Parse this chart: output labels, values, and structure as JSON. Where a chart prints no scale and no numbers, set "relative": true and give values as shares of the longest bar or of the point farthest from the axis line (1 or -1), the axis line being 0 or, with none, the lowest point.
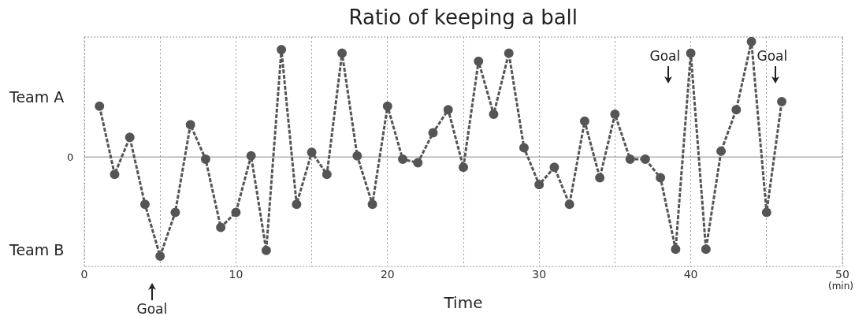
{
  "chart_data": {
    "type": "line",
    "title": "Ratio of keeping a ball",
    "xlabel": "Time",
    "relative": true,
    "x": [
      1,
      2,
      3,
      4,
      5,
      6,
      7,
      8,
      9,
      10,
      11,
      12,
      13,
      14,
      15,
      16,
      17,
      18,
      19,
      20,
      21,
      22,
      23,
      24,
      25,
      26,
      27,
      28,
      29,
      30,
      31,
      32,
      33,
      34,
      35,
      36,
      37,
      38,
      39,
      40,
      41,
      42,
      43,
      44,
      45,
      46
    ],
    "series": [
      {
        "color": "#555555",
        "values": [
          0.44,
          -0.15,
          0.17,
          -0.41,
          -0.86,
          -0.48,
          0.28,
          -0.02,
          -0.61,
          -0.48,
          0.01,
          -0.81,
          0.93,
          -0.41,
          0.04,
          -0.15,
          0.9,
          0.01,
          -0.41,
          0.44,
          -0.02,
          -0.05,
          0.21,
          0.41,
          -0.09,
          0.83,
          0.37,
          0.9,
          0.08,
          -0.24,
          -0.09,
          -0.41,
          0.31,
          -0.18,
          0.37,
          -0.02,
          -0.02,
          -0.18,
          -0.8,
          0.9,
          -0.8,
          0.05,
          0.41,
          1,
          -0.48,
          0.48
        ]
      }
    ],
    "xlim": [
      0,
      50
    ],
    "xticks": [
      0,
      {
        "value": 5,
        "label": null
      },
      10,
      {
        "value": 15,
        "label": null
      },
      20,
      {
        "value": 25,
        "label": null
      },
      30,
      {
        "value": 35,
        "label": null
      },
      40,
      {
        "value": 45,
        "label": null
      },
      50
    ],
    "grid": "x",
    "marker": "circle",
    "line_style": "dashed",
    "legend": false,
    "annotations": [
      "Team A",
      "0",
      "Team B",
      "(min)",
      "Goal",
      "Goal",
      "Goal"
    ]
  }
}
